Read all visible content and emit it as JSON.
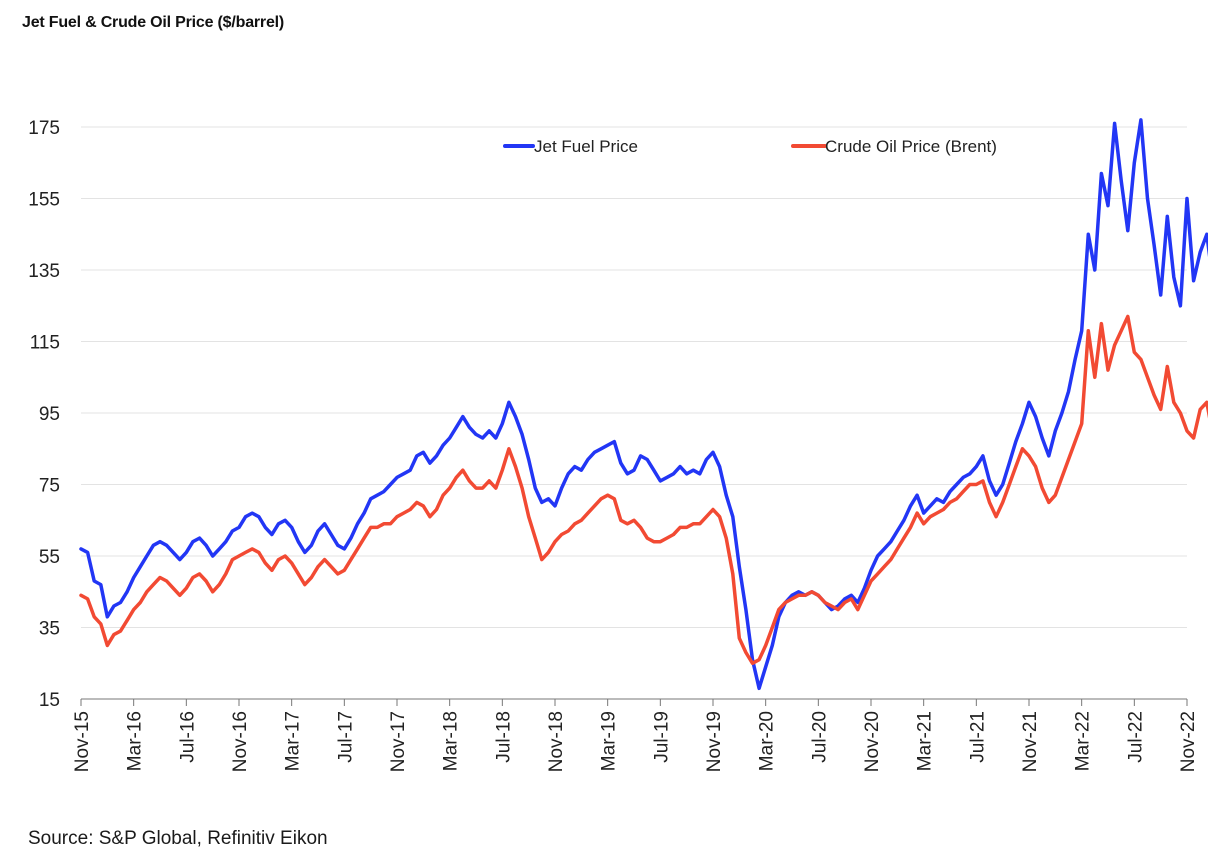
{
  "title": "Jet Fuel & Crude Oil Price ($/barrel)",
  "source": "Source: S&P Global, Refinitiv Eikon",
  "chart_data": {
    "type": "line",
    "title": "Jet Fuel & Crude Oil Price ($/barrel)",
    "xlabel": "",
    "ylabel": "",
    "ylim": [
      15,
      175
    ],
    "yticks": [
      15,
      35,
      55,
      75,
      95,
      115,
      135,
      155,
      175
    ],
    "grid": true,
    "legend_position": "top-center",
    "x_tick_labels": [
      "Nov-15",
      "Mar-16",
      "Jul-16",
      "Nov-16",
      "Mar-17",
      "Jul-17",
      "Nov-17",
      "Mar-18",
      "Jul-18",
      "Nov-18",
      "Mar-19",
      "Jul-19",
      "Nov-19",
      "Mar-20",
      "Jul-20",
      "Nov-20",
      "Mar-21",
      "Jul-21",
      "Nov-21",
      "Mar-22",
      "Jul-22",
      "Nov-22"
    ],
    "x_range_months": [
      0,
      84
    ],
    "x_step_months": 0.5,
    "series": [
      {
        "name": "Jet Fuel Price",
        "color": "#2236f5",
        "values": [
          57,
          56,
          48,
          47,
          38,
          41,
          42,
          45,
          49,
          52,
          55,
          58,
          59,
          58,
          56,
          54,
          56,
          59,
          60,
          58,
          55,
          57,
          59,
          62,
          63,
          66,
          67,
          66,
          63,
          61,
          64,
          65,
          63,
          59,
          56,
          58,
          62,
          64,
          61,
          58,
          57,
          60,
          64,
          67,
          71,
          72,
          73,
          75,
          77,
          78,
          79,
          83,
          84,
          81,
          83,
          86,
          88,
          91,
          94,
          91,
          89,
          88,
          90,
          88,
          92,
          98,
          94,
          89,
          82,
          74,
          70,
          71,
          69,
          74,
          78,
          80,
          79,
          82,
          84,
          85,
          86,
          87,
          81,
          78,
          79,
          83,
          82,
          79,
          76,
          77,
          78,
          80,
          78,
          79,
          78,
          82,
          84,
          80,
          72,
          66,
          52,
          40,
          26,
          18,
          24,
          30,
          38,
          42,
          44,
          45,
          44,
          45,
          44,
          42,
          40,
          41,
          43,
          44,
          42,
          46,
          51,
          55,
          57,
          59,
          62,
          65,
          69,
          72,
          67,
          69,
          71,
          70,
          73,
          75,
          77,
          78,
          80,
          83,
          76,
          72,
          75,
          81,
          87,
          92,
          98,
          94,
          88,
          83,
          90,
          95,
          101,
          110,
          118,
          145,
          135,
          162,
          153,
          176,
          160,
          146,
          165,
          177,
          155,
          142,
          128,
          150,
          133,
          125,
          155,
          132,
          140,
          145,
          131
        ]
      },
      {
        "name": "Crude Oil Price (Brent)",
        "color": "#f24a33",
        "values": [
          44,
          43,
          38,
          36,
          30,
          33,
          34,
          37,
          40,
          42,
          45,
          47,
          49,
          48,
          46,
          44,
          46,
          49,
          50,
          48,
          45,
          47,
          50,
          54,
          55,
          56,
          57,
          56,
          53,
          51,
          54,
          55,
          53,
          50,
          47,
          49,
          52,
          54,
          52,
          50,
          51,
          54,
          57,
          60,
          63,
          63,
          64,
          64,
          66,
          67,
          68,
          70,
          69,
          66,
          68,
          72,
          74,
          77,
          79,
          76,
          74,
          74,
          76,
          74,
          79,
          85,
          80,
          74,
          66,
          60,
          54,
          56,
          59,
          61,
          62,
          64,
          65,
          67,
          69,
          71,
          72,
          71,
          65,
          64,
          65,
          63,
          60,
          59,
          59,
          60,
          61,
          63,
          63,
          64,
          64,
          66,
          68,
          66,
          60,
          50,
          32,
          28,
          25,
          26,
          30,
          35,
          40,
          42,
          43,
          44,
          44,
          45,
          44,
          42,
          41,
          40,
          42,
          43,
          40,
          44,
          48,
          50,
          52,
          54,
          57,
          60,
          63,
          67,
          64,
          66,
          67,
          68,
          70,
          71,
          73,
          75,
          75,
          76,
          70,
          66,
          70,
          75,
          80,
          85,
          83,
          80,
          74,
          70,
          72,
          77,
          82,
          87,
          92,
          118,
          105,
          120,
          107,
          114,
          118,
          122,
          112,
          110,
          105,
          100,
          96,
          108,
          98,
          95,
          90,
          88,
          96,
          98,
          88
        ]
      }
    ]
  }
}
